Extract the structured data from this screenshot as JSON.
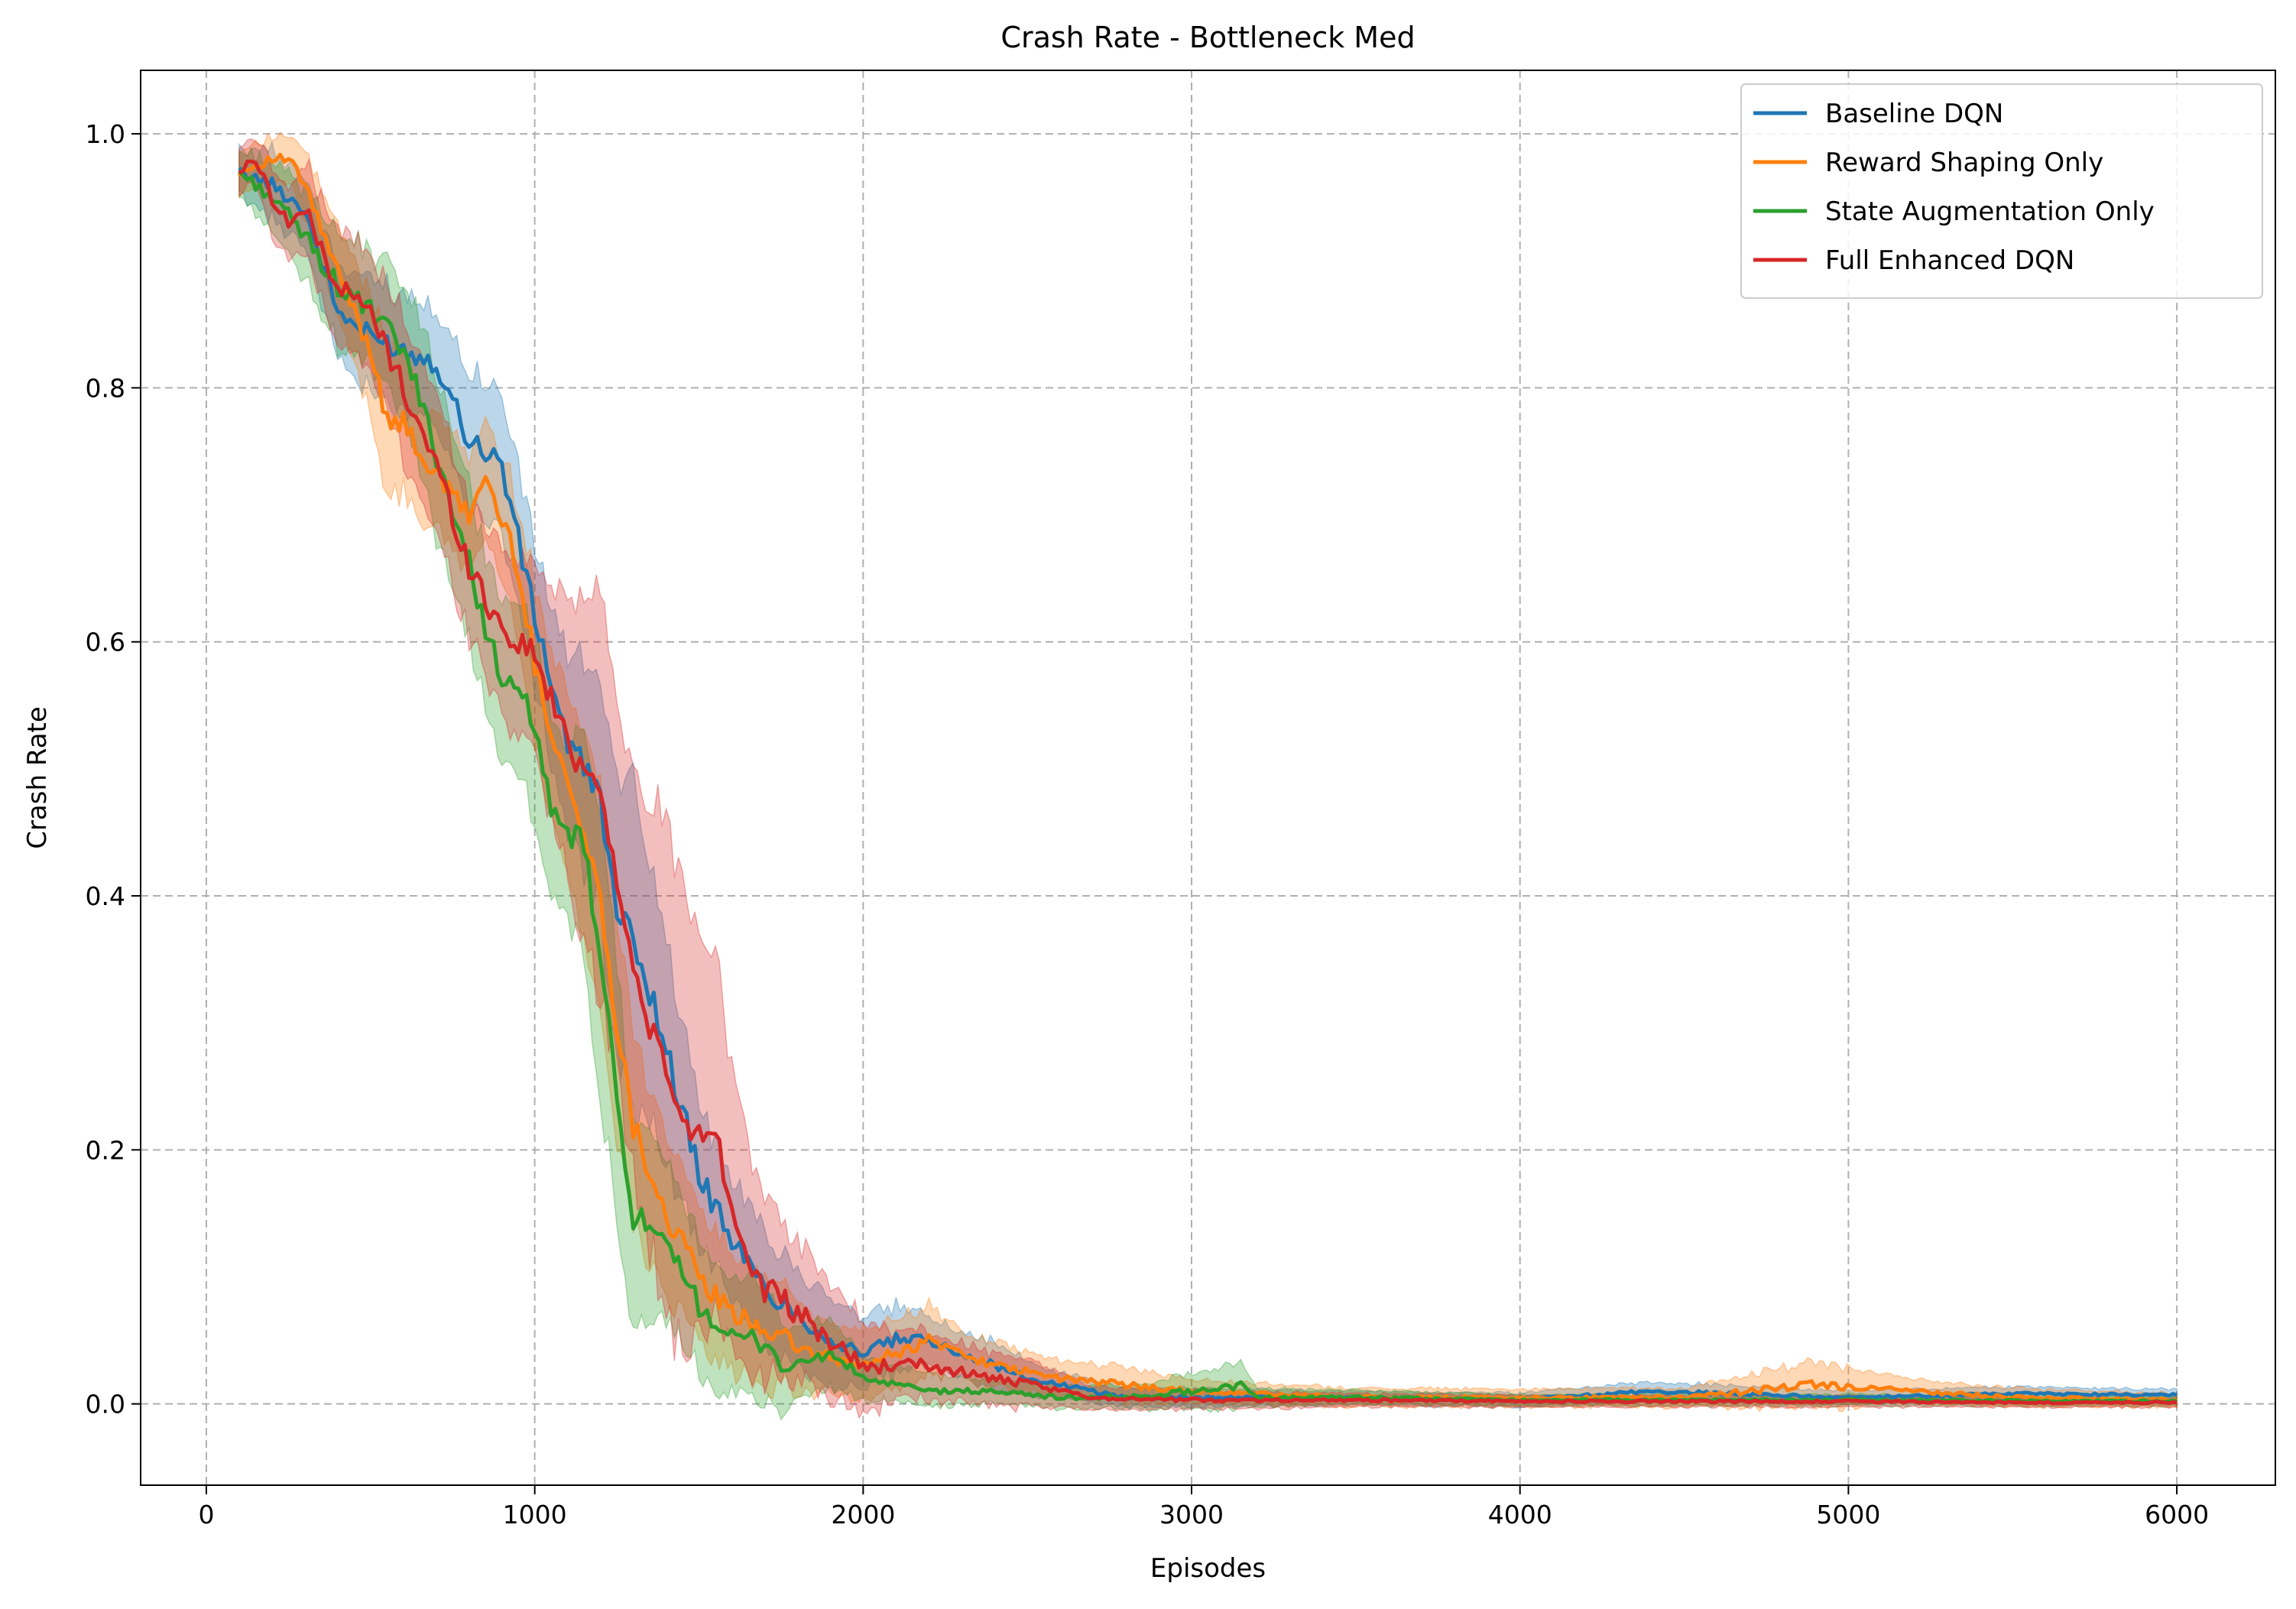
{
  "chart_data": {
    "type": "line",
    "title": "Crash Rate - Bottleneck Med",
    "xlabel": "Episodes",
    "ylabel": "Crash Rate",
    "xlim": [
      -200,
      6300
    ],
    "ylim": [
      -0.064,
      1.05
    ],
    "xticks": [
      0,
      1000,
      2000,
      3000,
      4000,
      5000,
      6000
    ],
    "xtick_labels": [
      "0",
      "1000",
      "2000",
      "3000",
      "4000",
      "5000",
      "6000"
    ],
    "yticks": [
      0.0,
      0.2,
      0.4,
      0.6,
      0.8,
      1.0
    ],
    "ytick_labels": [
      "0.0",
      "0.2",
      "0.4",
      "0.6",
      "0.8",
      "1.0"
    ],
    "grid": true,
    "grid_style": "dashed",
    "legend_position": "top-right",
    "shaded_band": "confidence band around each series",
    "series": [
      {
        "name": "Baseline DQN",
        "color": "#1f77b4",
        "x": [
          100,
          200,
          300,
          400,
          500,
          600,
          700,
          800,
          900,
          1000,
          1100,
          1200,
          1250,
          1300,
          1400,
          1500,
          1600,
          1700,
          1800,
          1900,
          2000,
          2100,
          2200,
          2300,
          2400,
          2500,
          2600,
          2700,
          2800,
          3000,
          3500,
          4000,
          4400,
          5000,
          5500,
          6000
        ],
        "y": [
          0.97,
          0.96,
          0.94,
          0.86,
          0.84,
          0.83,
          0.82,
          0.76,
          0.74,
          0.62,
          0.52,
          0.48,
          0.38,
          0.37,
          0.28,
          0.18,
          0.13,
          0.09,
          0.07,
          0.05,
          0.04,
          0.05,
          0.05,
          0.04,
          0.03,
          0.02,
          0.015,
          0.01,
          0.005,
          0.005,
          0.005,
          0.003,
          0.01,
          0.005,
          0.008,
          0.007
        ],
        "band": [
          0.02,
          0.03,
          0.03,
          0.04,
          0.05,
          0.05,
          0.05,
          0.06,
          0.06,
          0.06,
          0.08,
          0.1,
          0.12,
          0.14,
          0.1,
          0.06,
          0.05,
          0.05,
          0.04,
          0.04,
          0.03,
          0.03,
          0.02,
          0.02,
          0.02,
          0.015,
          0.01,
          0.01,
          0.008,
          0.008,
          0.006,
          0.006,
          0.008,
          0.006,
          0.006,
          0.005
        ]
      },
      {
        "name": "Reward Shaping Only",
        "color": "#ff7f0e",
        "x": [
          100,
          200,
          250,
          300,
          400,
          500,
          550,
          600,
          700,
          800,
          850,
          950,
          1000,
          1100,
          1200,
          1250,
          1300,
          1400,
          1500,
          1600,
          1700,
          1800,
          1900,
          2000,
          2100,
          2200,
          2300,
          2400,
          2600,
          2800,
          3000,
          3500,
          4000,
          4500,
          4900,
          5200,
          5500,
          6000
        ],
        "y": [
          0.97,
          0.98,
          0.98,
          0.96,
          0.89,
          0.83,
          0.78,
          0.77,
          0.73,
          0.7,
          0.73,
          0.66,
          0.58,
          0.49,
          0.4,
          0.3,
          0.22,
          0.15,
          0.1,
          0.07,
          0.06,
          0.045,
          0.035,
          0.03,
          0.04,
          0.05,
          0.04,
          0.03,
          0.02,
          0.015,
          0.01,
          0.005,
          0.005,
          0.005,
          0.015,
          0.01,
          0.005,
          0.003
        ],
        "band": [
          0.02,
          0.02,
          0.02,
          0.03,
          0.04,
          0.05,
          0.07,
          0.06,
          0.05,
          0.05,
          0.05,
          0.06,
          0.07,
          0.08,
          0.1,
          0.1,
          0.08,
          0.07,
          0.06,
          0.05,
          0.05,
          0.04,
          0.03,
          0.03,
          0.03,
          0.03,
          0.02,
          0.02,
          0.015,
          0.015,
          0.01,
          0.008,
          0.008,
          0.008,
          0.02,
          0.01,
          0.008,
          0.006
        ]
      },
      {
        "name": "State Augmentation Only",
        "color": "#2ca02c",
        "x": [
          100,
          200,
          300,
          400,
          500,
          600,
          700,
          800,
          900,
          1000,
          1050,
          1100,
          1150,
          1200,
          1250,
          1300,
          1400,
          1500,
          1600,
          1700,
          1750,
          1800,
          1900,
          2000,
          2100,
          2200,
          2400,
          2600,
          2800,
          3000,
          3150,
          3200,
          3500,
          4000,
          4500,
          5000,
          6000
        ],
        "y": [
          0.97,
          0.95,
          0.92,
          0.88,
          0.86,
          0.83,
          0.75,
          0.66,
          0.57,
          0.54,
          0.46,
          0.45,
          0.44,
          0.35,
          0.24,
          0.15,
          0.12,
          0.08,
          0.05,
          0.05,
          0.03,
          0.03,
          0.04,
          0.02,
          0.015,
          0.01,
          0.01,
          0.005,
          0.005,
          0.01,
          0.015,
          0.005,
          0.005,
          0.003,
          0.003,
          0.003,
          0.002
        ],
        "band": [
          0.02,
          0.03,
          0.04,
          0.05,
          0.05,
          0.06,
          0.07,
          0.07,
          0.07,
          0.08,
          0.08,
          0.07,
          0.1,
          0.12,
          0.12,
          0.09,
          0.07,
          0.06,
          0.05,
          0.05,
          0.04,
          0.03,
          0.03,
          0.02,
          0.015,
          0.015,
          0.01,
          0.01,
          0.01,
          0.015,
          0.02,
          0.008,
          0.006,
          0.005,
          0.005,
          0.005,
          0.004
        ]
      },
      {
        "name": "Full Enhanced DQN",
        "color": "#d62728",
        "x": [
          100,
          150,
          200,
          250,
          300,
          400,
          500,
          600,
          700,
          800,
          900,
          950,
          1000,
          1100,
          1150,
          1200,
          1250,
          1300,
          1350,
          1400,
          1450,
          1500,
          1550,
          1600,
          1700,
          1800,
          1900,
          2000,
          2100,
          2200,
          2300,
          2500,
          2700,
          3000,
          3500,
          4000,
          4500,
          5000,
          5500,
          6000
        ],
        "y": [
          0.97,
          0.98,
          0.95,
          0.93,
          0.94,
          0.88,
          0.86,
          0.8,
          0.74,
          0.66,
          0.61,
          0.6,
          0.59,
          0.52,
          0.5,
          0.49,
          0.41,
          0.34,
          0.3,
          0.26,
          0.22,
          0.21,
          0.22,
          0.15,
          0.09,
          0.07,
          0.05,
          0.03,
          0.03,
          0.03,
          0.025,
          0.015,
          0.005,
          0.003,
          0.003,
          0.002,
          0.002,
          0.002,
          0.001,
          0.001
        ],
        "band": [
          0.02,
          0.02,
          0.03,
          0.03,
          0.04,
          0.05,
          0.05,
          0.06,
          0.06,
          0.06,
          0.07,
          0.08,
          0.08,
          0.12,
          0.16,
          0.18,
          0.16,
          0.18,
          0.2,
          0.22,
          0.2,
          0.18,
          0.16,
          0.12,
          0.08,
          0.06,
          0.05,
          0.04,
          0.03,
          0.03,
          0.025,
          0.02,
          0.01,
          0.008,
          0.006,
          0.005,
          0.005,
          0.005,
          0.004,
          0.004
        ]
      }
    ]
  }
}
